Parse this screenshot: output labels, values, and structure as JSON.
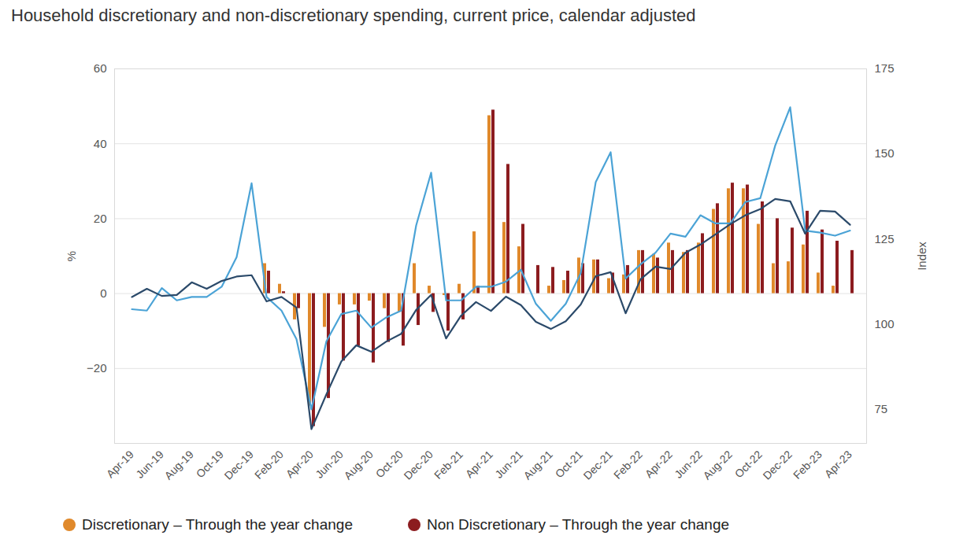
{
  "chart_data": {
    "type": "bar",
    "title": "Household discretionary and non-discretionary spending, current price, calendar adjusted",
    "categories": [
      "Apr-19",
      null,
      "Jun-19",
      null,
      "Aug-19",
      null,
      "Oct-19",
      null,
      "Dec-19",
      null,
      "Feb-20",
      null,
      "Apr-20",
      null,
      "Jun-20",
      null,
      "Aug-20",
      null,
      "Oct-20",
      null,
      "Dec-20",
      null,
      "Feb-21",
      null,
      "Apr-21",
      null,
      "Jun-21",
      null,
      "Aug-21",
      null,
      "Oct-21",
      null,
      "Dec-21",
      null,
      "Feb-22",
      null,
      "Apr-22",
      null,
      "Jun-22",
      null,
      "Aug-22",
      null,
      "Oct-22",
      null,
      "Dec-22",
      null,
      "Feb-23",
      null,
      "Apr-23"
    ],
    "ylabel": "%",
    "y2label": "Index",
    "ylim": [
      -40,
      60
    ],
    "yticks": [
      -20,
      0,
      20,
      40,
      60
    ],
    "y2lim": [
      65,
      175
    ],
    "y2ticks": [
      75,
      100,
      125,
      150,
      175
    ],
    "grid": true,
    "legend": "bottom",
    "series": [
      {
        "name": "Discretionary – Through the year change",
        "color": "#e0892b",
        "type": "bar",
        "values": [
          null,
          null,
          null,
          null,
          null,
          null,
          null,
          null,
          null,
          8,
          2.5,
          -7,
          -30,
          -9,
          -3,
          -3,
          -2,
          -4,
          -5,
          8,
          2,
          -0.5,
          2.5,
          16.5,
          47.5,
          19,
          12.5,
          0,
          2,
          3.5,
          9.5,
          9,
          4,
          5,
          11.5,
          10.5,
          13.5,
          11,
          13.5,
          22.5,
          28,
          28,
          18.5,
          8,
          8.5,
          13,
          5.5,
          2,
          0
        ]
      },
      {
        "name": "Non Discretionary – Through the year change",
        "color": "#8c1c1f",
        "type": "bar",
        "values": [
          null,
          null,
          null,
          null,
          null,
          null,
          null,
          null,
          null,
          6,
          0.5,
          -4,
          -35.5,
          -28,
          -18,
          -14,
          -18.5,
          -13,
          -14,
          -8.5,
          -5,
          -10,
          -7,
          2,
          49,
          34.5,
          18.5,
          7.5,
          7,
          6,
          8,
          9,
          5.5,
          7.5,
          11.5,
          9.5,
          11.5,
          11.5,
          16,
          24,
          29.5,
          29,
          24.5,
          20,
          17.5,
          22,
          17,
          14,
          11.5
        ]
      },
      {
        "color": "#4ba3d6",
        "type": "line",
        "axis": "y2",
        "values": [
          104.4,
          104,
          110.6,
          107,
          108,
          108,
          111,
          119.7,
          141.4,
          108,
          104,
          95.6,
          75,
          95,
          103,
          104,
          99,
          102,
          104,
          129,
          144.5,
          107,
          107,
          111,
          111,
          112.5,
          116,
          106,
          101,
          106,
          115,
          141.7,
          150.5,
          113.4,
          117.6,
          121,
          126.6,
          125.7,
          132,
          129.6,
          129.6,
          135.9,
          137,
          152.5,
          163.7,
          127.5,
          126.9,
          126,
          127.5
        ]
      },
      {
        "color": "#2b4a6a",
        "type": "line",
        "axis": "y2",
        "values": [
          108,
          110.4,
          108.3,
          108.6,
          112.3,
          110.4,
          112.7,
          114,
          114.4,
          106.7,
          108,
          104.9,
          69.2,
          79.4,
          89.1,
          93.8,
          91.9,
          94.9,
          97.2,
          104.2,
          108.6,
          95.8,
          102.5,
          106.5,
          103.9,
          108.1,
          105.6,
          100.7,
          98.6,
          100.9,
          105.8,
          114.1,
          115.3,
          103.2,
          113.2,
          116.9,
          116.2,
          121,
          123.4,
          126.4,
          129.4,
          132,
          133.8,
          136.8,
          136.1,
          126.6,
          133.3,
          133.1,
          129.2
        ]
      }
    ]
  }
}
